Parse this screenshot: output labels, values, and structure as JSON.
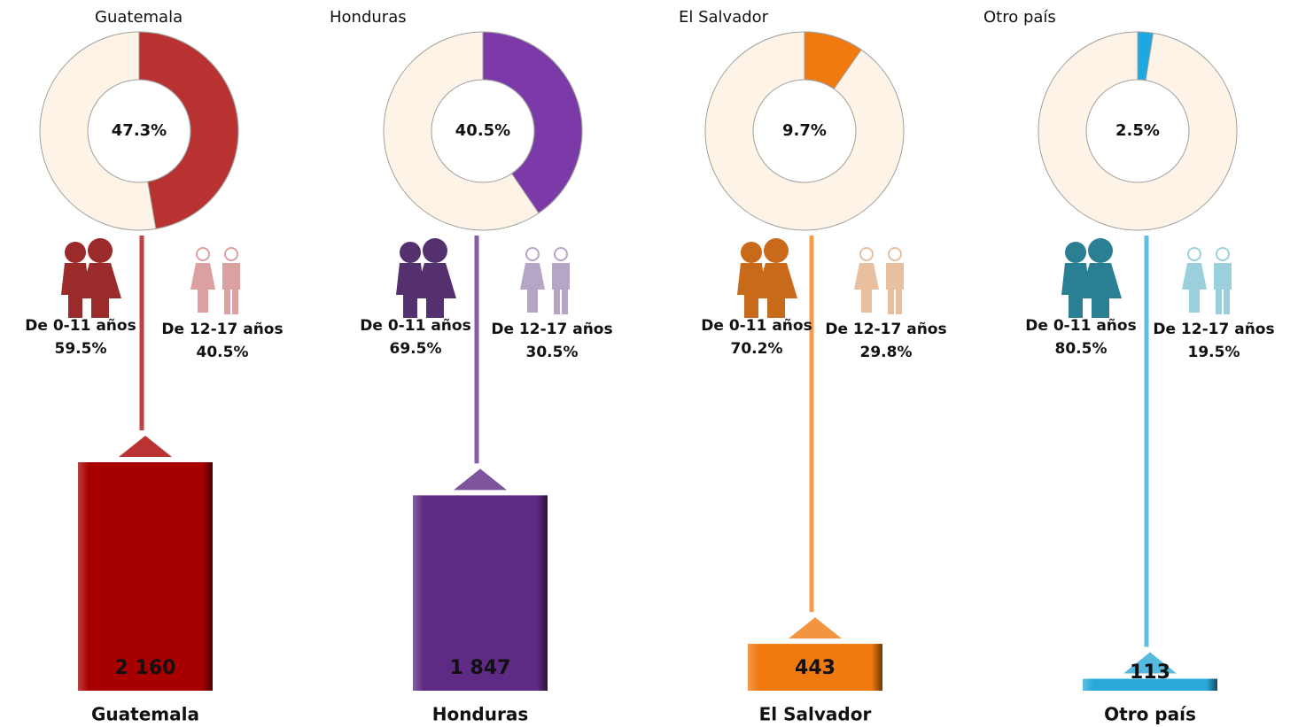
{
  "chart_data": [
    {
      "type": "pie",
      "title": "Guatemala",
      "values": [
        47.3
      ],
      "value_labels": [
        "47.3%"
      ],
      "color": "#b83232",
      "groups": {
        "categories": [
          "De 0-11 años",
          "De 12-17 años"
        ],
        "values": [
          59.5,
          40.5
        ],
        "value_labels": [
          "59.5%",
          "40.5%"
        ],
        "colors": [
          "#9b2a2a",
          "#dba0a0"
        ]
      }
    },
    {
      "type": "pie",
      "title": "Honduras",
      "values": [
        40.5
      ],
      "value_labels": [
        "40.5%"
      ],
      "color": "#7b3aa8",
      "groups": {
        "categories": [
          "De 0-11 años",
          "De 12-17 años"
        ],
        "values": [
          69.5,
          30.5
        ],
        "value_labels": [
          "69.5%",
          "30.5%"
        ],
        "colors": [
          "#55306f",
          "#b6a6c6"
        ]
      }
    },
    {
      "type": "pie",
      "title": "El Salvador",
      "values": [
        9.7
      ],
      "value_labels": [
        "9.7%"
      ],
      "color": "#f07a10",
      "groups": {
        "categories": [
          "De 0-11 años",
          "De 12-17 años"
        ],
        "values": [
          70.2,
          29.8
        ],
        "value_labels": [
          "70.2%",
          "29.8%"
        ],
        "colors": [
          "#c86a1a",
          "#e8c0a0"
        ]
      }
    },
    {
      "type": "pie",
      "title": "Otro país",
      "values": [
        2.5
      ],
      "value_labels": [
        "2.5%"
      ],
      "color": "#1fa8e0",
      "groups": {
        "categories": [
          "De 0-11 años",
          "De 12-17 años"
        ],
        "values": [
          80.5,
          19.5
        ],
        "value_labels": [
          "80.5%",
          "19.5%"
        ],
        "colors": [
          "#2a7f92",
          "#9ccfdc"
        ]
      }
    },
    {
      "type": "bar",
      "categories": [
        "Guatemala",
        "Honduras",
        "El Salvador",
        "Otro país"
      ],
      "values": [
        2160,
        1847,
        443,
        113
      ],
      "value_labels": [
        "2 160",
        "1 847",
        "443",
        "113"
      ],
      "colors": [
        "#a80000",
        "#5e2a84",
        "#f07a10",
        "#2aa8d8"
      ]
    }
  ]
}
